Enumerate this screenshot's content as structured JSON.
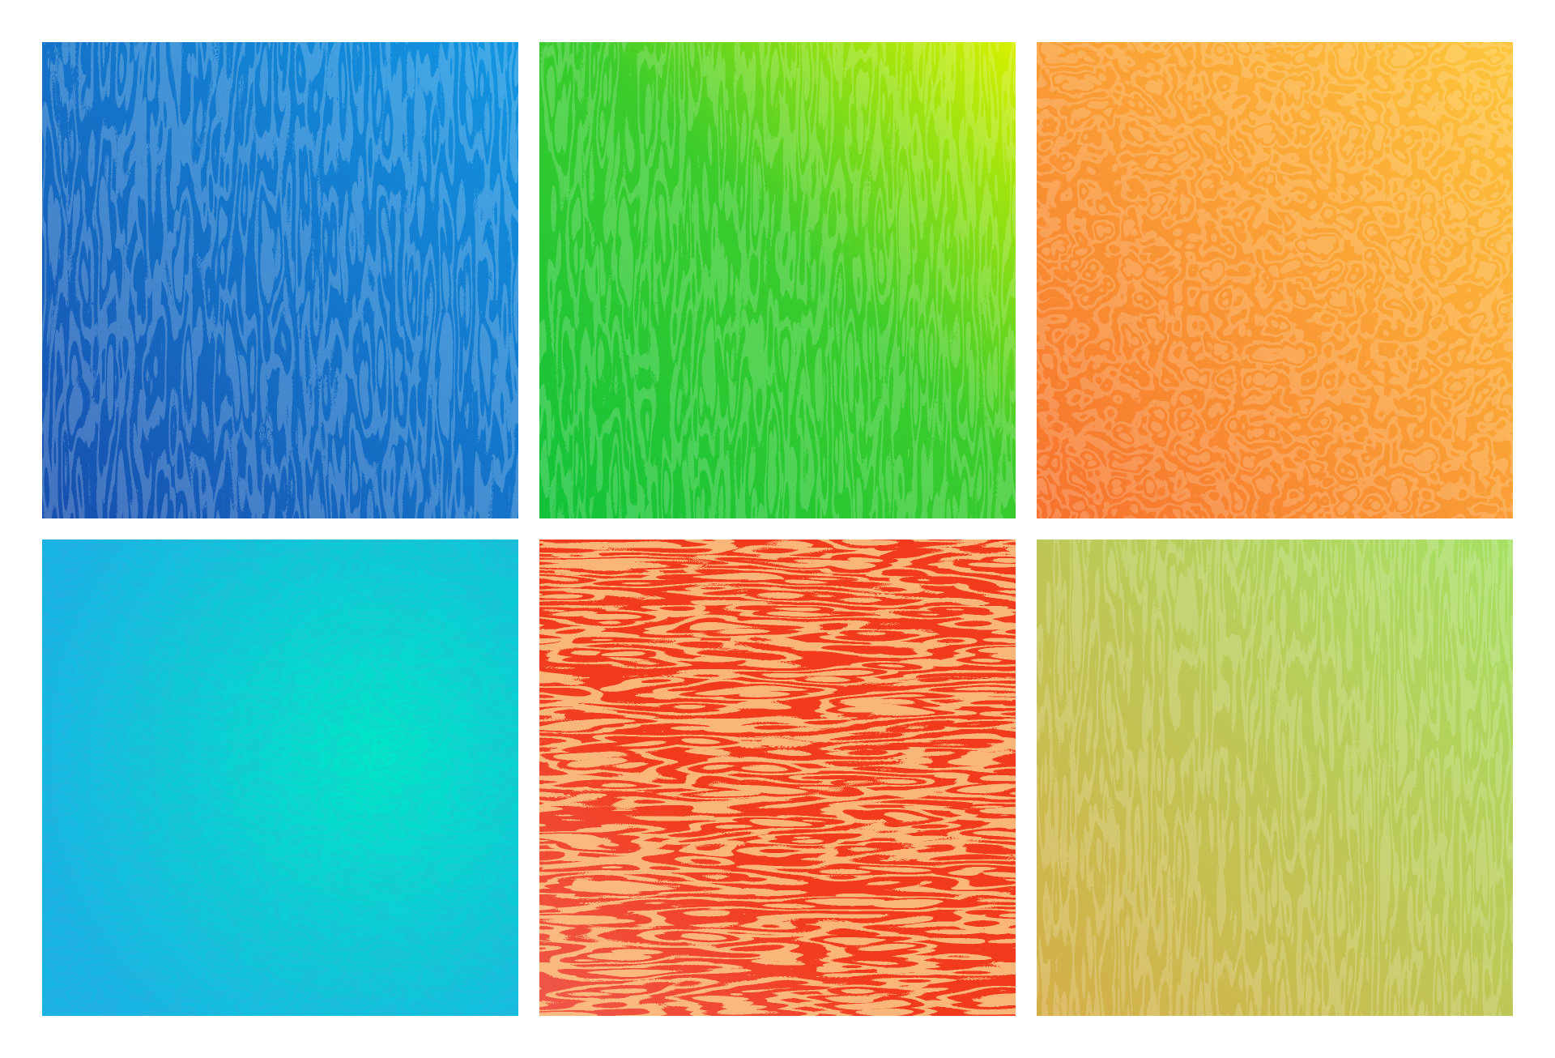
{
  "tiles": [
    {
      "name": "blue-labyrinth-tile",
      "colors": {
        "start": "#174fae",
        "end": "#1296e2",
        "pattern": "#ffffff"
      },
      "direction": "vertical"
    },
    {
      "name": "green-labyrinth-tile",
      "colors": {
        "start": "#12c23a",
        "end": "#d8f000",
        "pattern": "#ffffff"
      },
      "direction": "vertical"
    },
    {
      "name": "orange-labyrinth-tile",
      "colors": {
        "start": "#f6722e",
        "end": "#fdc63c",
        "pattern": "#ffffff"
      },
      "direction": "mixed"
    },
    {
      "name": "cyan-labyrinth-tile",
      "colors": {
        "start": "#18b4e4",
        "end": "#00e6c6",
        "pattern": "#ffffff"
      },
      "direction": "diagonal"
    },
    {
      "name": "red-labyrinth-tile",
      "colors": {
        "start": "#f23a1c",
        "end": "#f59a34",
        "pattern": "#ffb060"
      },
      "direction": "horizontal"
    },
    {
      "name": "lime-labyrinth-tile",
      "colors": {
        "start": "#d6ae48",
        "end": "#a6e064",
        "pattern": "#ffffff"
      },
      "direction": "vertical"
    }
  ]
}
